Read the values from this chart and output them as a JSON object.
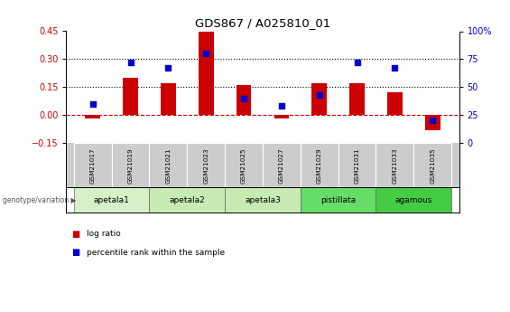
{
  "title": "GDS867 / A025810_01",
  "samples": [
    "GSM21017",
    "GSM21019",
    "GSM21021",
    "GSM21023",
    "GSM21025",
    "GSM21027",
    "GSM21029",
    "GSM21031",
    "GSM21033",
    "GSM21035"
  ],
  "log_ratio": [
    -0.02,
    0.2,
    0.17,
    0.45,
    0.16,
    -0.02,
    0.17,
    0.17,
    0.12,
    -0.08
  ],
  "percentile_rank": [
    35,
    72,
    67,
    80,
    40,
    33,
    43,
    72,
    67,
    20
  ],
  "groups": [
    {
      "label": "apetala1",
      "indices": [
        0,
        1
      ],
      "color": "#d8f0c8"
    },
    {
      "label": "apetala2",
      "indices": [
        2,
        3
      ],
      "color": "#c8ebb4"
    },
    {
      "label": "apetala3",
      "indices": [
        4,
        5
      ],
      "color": "#c8ebb4"
    },
    {
      "label": "pistillata",
      "indices": [
        6,
        7
      ],
      "color": "#66dd66"
    },
    {
      "label": "agamous",
      "indices": [
        8,
        9
      ],
      "color": "#44cc44"
    }
  ],
  "ylim_left": [
    -0.15,
    0.45
  ],
  "ylim_right": [
    0,
    100
  ],
  "yticks_left": [
    -0.15,
    0.0,
    0.15,
    0.3,
    0.45
  ],
  "yticks_right": [
    0,
    25,
    50,
    75,
    100
  ],
  "hlines": [
    0.15,
    0.3
  ],
  "bar_color": "#cc0000",
  "dot_color": "#0000cc",
  "bar_width": 0.4,
  "legend_items": [
    "log ratio",
    "percentile rank within the sample"
  ],
  "legend_colors": [
    "#cc0000",
    "#0000cc"
  ],
  "genotype_label": "genotype/variation"
}
